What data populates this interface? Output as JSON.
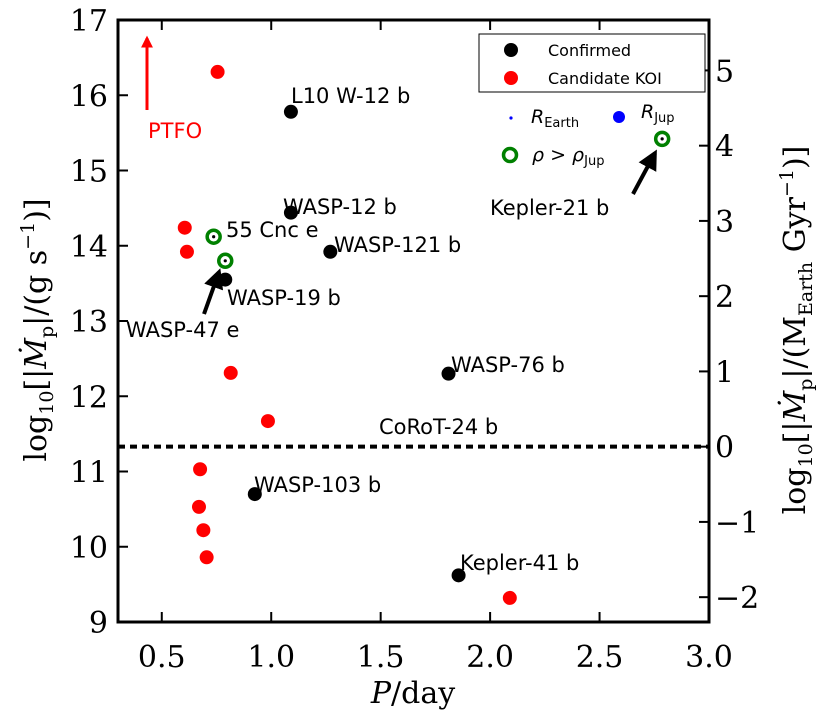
{
  "chart_data": {
    "type": "scatter",
    "xlabel": "P/day",
    "ylabel_left": "log10[|Ṁp|/(g s−1)]",
    "ylabel_right": "log10[|Ṁp|/(MEarth Gyr−1)]",
    "xlim": [
      0.3,
      3.0
    ],
    "ylim": [
      9,
      17
    ],
    "ylim_right": [
      -2.33,
      5.67
    ],
    "x_ticks": [
      0.5,
      1.0,
      1.5,
      2.0,
      2.5,
      3.0
    ],
    "x_tick_labels": [
      "0.5",
      "1.0",
      "1.5",
      "2.0",
      "2.5",
      "3.0"
    ],
    "y_ticks": [
      9,
      10,
      11,
      12,
      13,
      14,
      15,
      16,
      17
    ],
    "y_tick_labels": [
      "9",
      "10",
      "11",
      "12",
      "13",
      "14",
      "15",
      "16",
      "17"
    ],
    "y_right_ticks": [
      -2,
      -1,
      0,
      1,
      2,
      3,
      4,
      5
    ],
    "y_right_tick_labels": [
      "−2",
      "−1",
      "0",
      "1",
      "2",
      "3",
      "4",
      "5"
    ],
    "colors": {
      "confirmed": "#000000",
      "candidate": "#ff0000",
      "high_density": "#008000",
      "r_earth": "#0000ff",
      "r_jup": "#0000ff",
      "ptfo": "#ff0000"
    },
    "legend": {
      "position": "top-right",
      "entries": [
        {
          "label": "Confirmed",
          "marker": "confirmed"
        },
        {
          "label": "Candidate KOI",
          "marker": "candidate"
        }
      ],
      "size_labels": {
        "earth": "R",
        "earth_sub": "Earth",
        "jup": "R",
        "jup_sub": "Jup"
      },
      "density_label": {
        "rho": "ρ > ρ",
        "sub": "Jup"
      }
    },
    "confirmed": [
      {
        "name": "L10 W-12 b",
        "x": 1.09,
        "y": 15.78
      },
      {
        "name": "WASP-12 b",
        "x": 1.09,
        "y": 14.44
      },
      {
        "name": "WASP-121 b",
        "x": 1.27,
        "y": 13.92
      },
      {
        "name": "WASP-19 b",
        "x": 0.79,
        "y": 13.55
      },
      {
        "name": "WASP-76 b",
        "x": 1.81,
        "y": 12.3
      },
      {
        "name": "WASP-103 b",
        "x": 0.925,
        "y": 10.7
      },
      {
        "name": "Kepler-41 b",
        "x": 1.856,
        "y": 9.62
      }
    ],
    "candidates": [
      {
        "x": 0.755,
        "y": 16.31
      },
      {
        "x": 0.605,
        "y": 14.24
      },
      {
        "x": 0.615,
        "y": 13.92
      },
      {
        "x": 0.815,
        "y": 12.31
      },
      {
        "x": 0.985,
        "y": 11.67
      },
      {
        "x": 0.675,
        "y": 11.03
      },
      {
        "x": 0.67,
        "y": 10.53
      },
      {
        "x": 0.69,
        "y": 10.22
      },
      {
        "x": 0.705,
        "y": 9.86
      },
      {
        "x": 2.09,
        "y": 9.32
      }
    ],
    "high_density": [
      {
        "name": "55 Cnc e",
        "x": 0.737,
        "y": 14.12
      },
      {
        "name": "WASP-47 e",
        "x": 0.79,
        "y": 13.8
      },
      {
        "name": "Kepler-21 b",
        "x": 2.786,
        "y": 15.42
      }
    ],
    "labels": {
      "ptfo": "PTFO",
      "corot": "CoRoT-24 b",
      "l10": "L10 W-12 b",
      "wasp12": "WASP-12 b",
      "cnc": "55 Cnc e",
      "wasp121": "WASP-121 b",
      "wasp19": "WASP-19 b",
      "wasp47": "WASP-47 e",
      "wasp76": "WASP-76 b",
      "wasp103": "WASP-103 b",
      "kepler41": "Kepler-41 b",
      "kepler21": "Kepler-21 b"
    },
    "corot_line_y": 11.33
  }
}
